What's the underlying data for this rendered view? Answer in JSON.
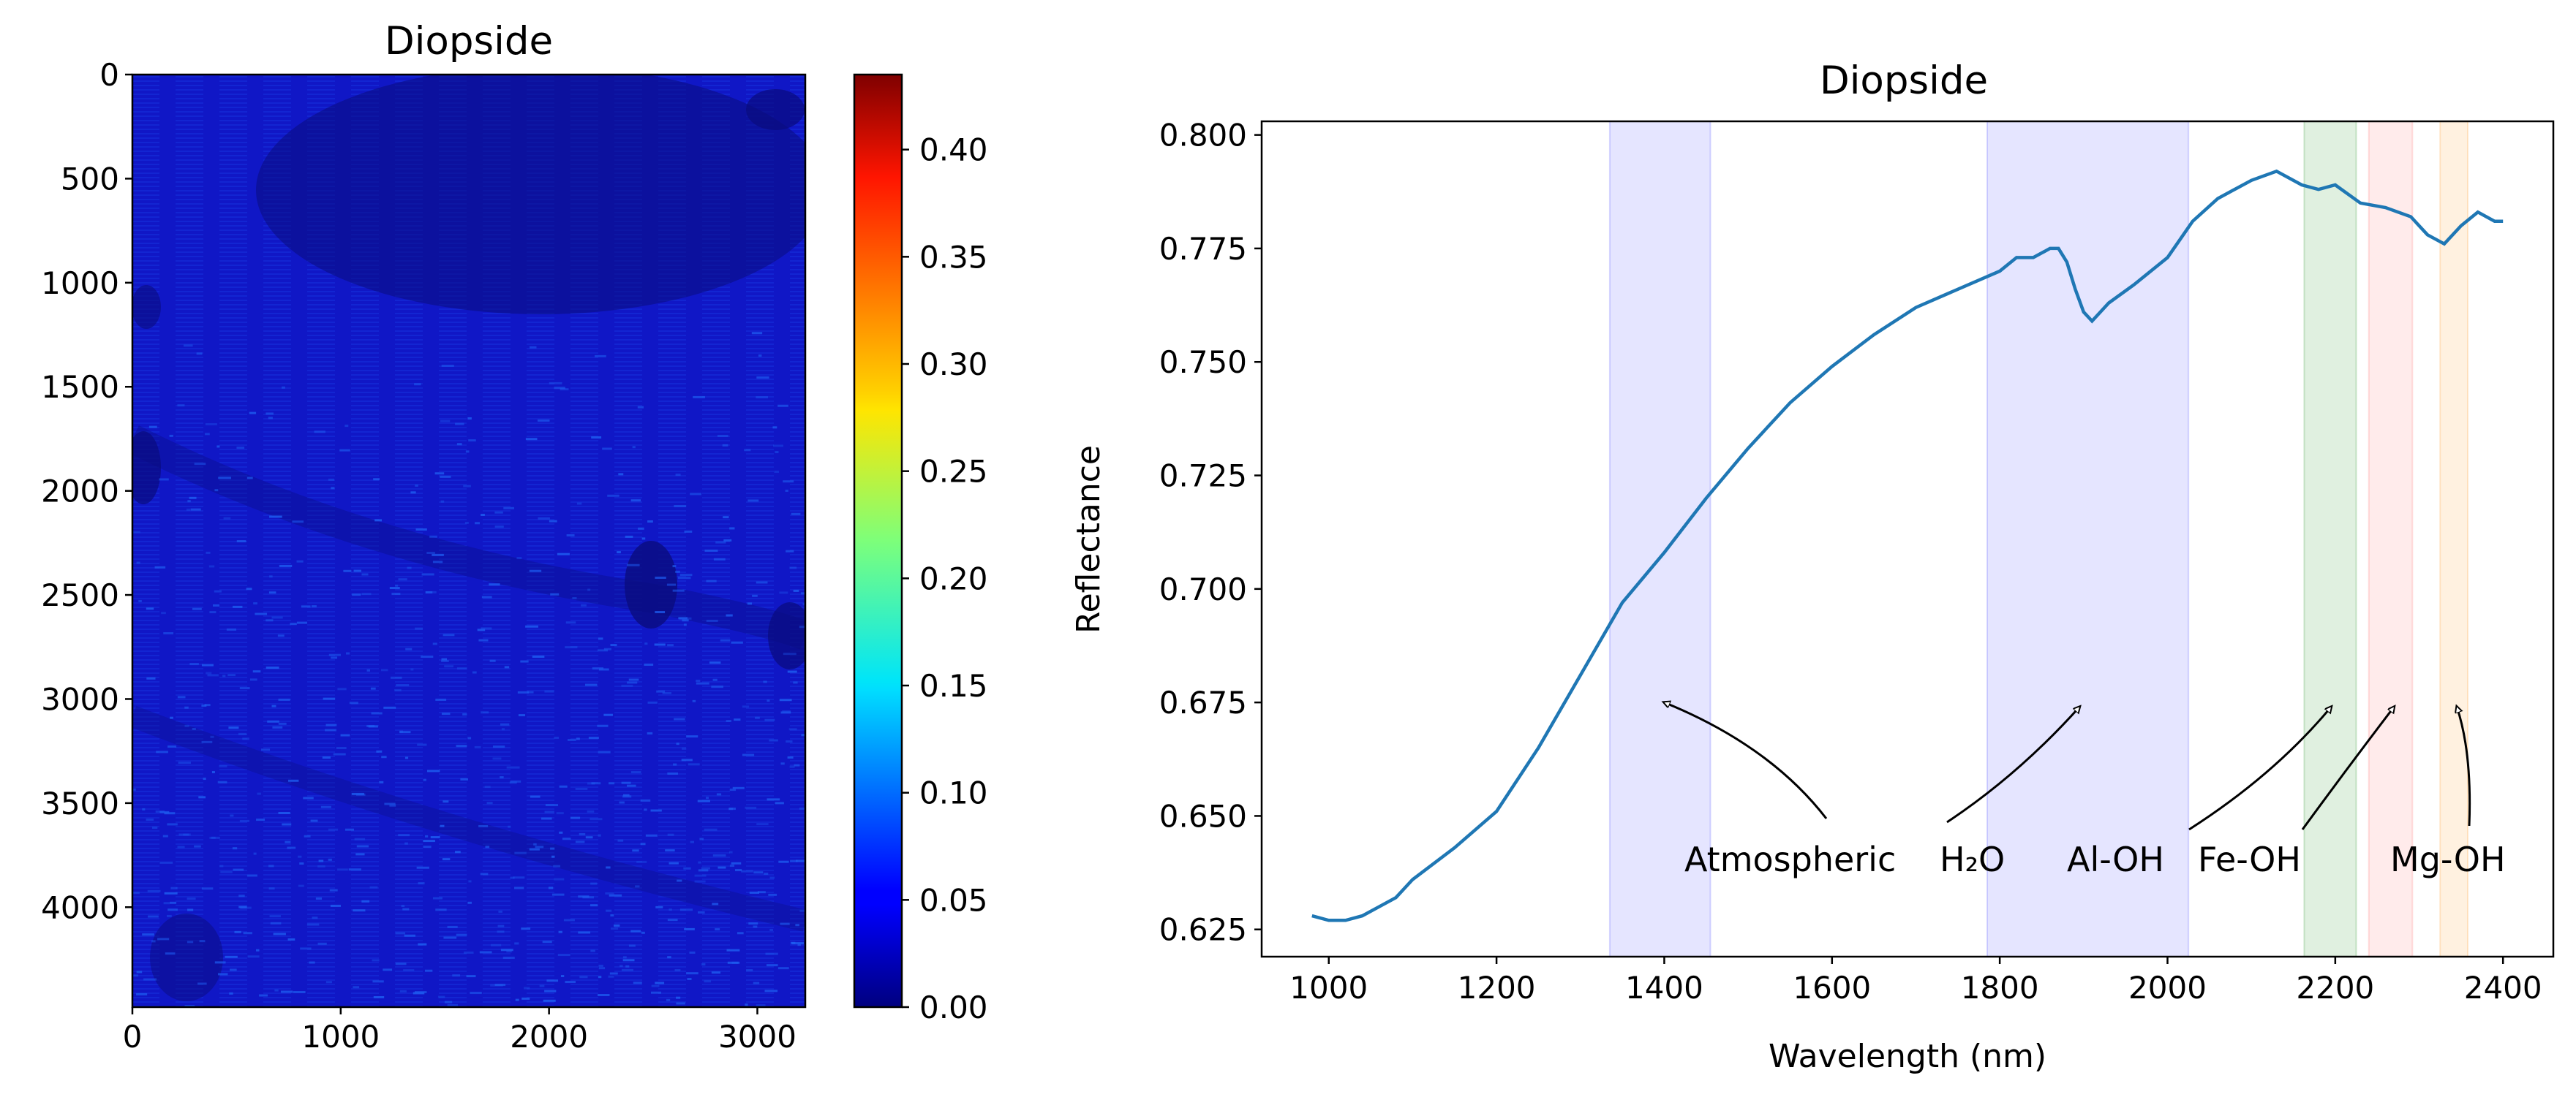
{
  "chart_data": [
    {
      "type": "heatmap",
      "title": "Diopside",
      "x_ticks": [
        0,
        1000,
        2000,
        3000
      ],
      "y_ticks": [
        0,
        500,
        1000,
        1500,
        2000,
        2500,
        3000,
        3500,
        4000
      ],
      "xlim": [
        0,
        3230
      ],
      "ylim": [
        4480,
        0
      ],
      "colormap": "jet",
      "colorbar": {
        "ticks": [
          "0.00",
          "0.05",
          "0.10",
          "0.15",
          "0.20",
          "0.25",
          "0.30",
          "0.35",
          "0.40"
        ],
        "range": [
          0,
          0.435
        ]
      },
      "dominant_value_range": [
        0.0,
        0.1
      ],
      "colors": {
        "background": "#1017c6",
        "dark_patch": "#0a0c7e",
        "speckle": "#1e5df0"
      }
    },
    {
      "type": "line",
      "title": "Diopside",
      "xlabel": "Wavelength (nm)",
      "ylabel": "Reflectance",
      "xlim": [
        920,
        2460
      ],
      "ylim": [
        0.619,
        0.803
      ],
      "x_ticks": [
        1000,
        1200,
        1400,
        1600,
        1800,
        2000,
        2200,
        2400
      ],
      "y_ticks": [
        "0.625",
        "0.650",
        "0.675",
        "0.700",
        "0.725",
        "0.750",
        "0.775",
        "0.800"
      ],
      "series": [
        {
          "name": "Diopside",
          "color": "#1f77b4",
          "x": [
            980,
            1000,
            1020,
            1040,
            1060,
            1080,
            1100,
            1150,
            1200,
            1250,
            1300,
            1350,
            1400,
            1450,
            1500,
            1550,
            1600,
            1650,
            1700,
            1750,
            1800,
            1820,
            1840,
            1860,
            1870,
            1880,
            1890,
            1900,
            1910,
            1915,
            1930,
            1960,
            2000,
            2030,
            2060,
            2100,
            2130,
            2160,
            2180,
            2200,
            2230,
            2260,
            2290,
            2310,
            2330,
            2350,
            2370,
            2390,
            2400
          ],
          "y": [
            0.628,
            0.627,
            0.627,
            0.628,
            0.63,
            0.632,
            0.636,
            0.643,
            0.651,
            0.665,
            0.681,
            0.697,
            0.708,
            0.72,
            0.731,
            0.741,
            0.749,
            0.756,
            0.762,
            0.766,
            0.77,
            0.773,
            0.773,
            0.775,
            0.775,
            0.772,
            0.766,
            0.761,
            0.759,
            0.76,
            0.763,
            0.767,
            0.773,
            0.781,
            0.786,
            0.79,
            0.792,
            0.789,
            0.788,
            0.789,
            0.785,
            0.784,
            0.782,
            0.778,
            0.776,
            0.78,
            0.783,
            0.781,
            0.781
          ]
        }
      ],
      "bands": [
        {
          "start": 1335,
          "end": 1455,
          "color": "#0000ff",
          "opacity": 0.1
        },
        {
          "start": 1785,
          "end": 2025,
          "color": "#0000ff",
          "opacity": 0.1
        },
        {
          "start": 2163,
          "end": 2225,
          "color": "#008000",
          "opacity": 0.12
        },
        {
          "start": 2240,
          "end": 2292,
          "color": "#ff0000",
          "opacity": 0.08
        },
        {
          "start": 2325,
          "end": 2358,
          "color": "#ff8c00",
          "opacity": 0.12
        }
      ],
      "annotations": [
        {
          "text": "Atmospheric",
          "sub_html": "",
          "arrow_target": [
            1400,
            0.675
          ]
        },
        {
          "text": "H₂O",
          "arrow_target": [
            1895,
            0.674
          ]
        },
        {
          "text": "Al-OH",
          "arrow_target": [
            2195,
            0.674
          ]
        },
        {
          "text": "Fe-OH",
          "arrow_target": [
            2270,
            0.674
          ]
        },
        {
          "text": "Mg-OH",
          "arrow_target": [
            2345,
            0.674
          ]
        }
      ]
    }
  ]
}
